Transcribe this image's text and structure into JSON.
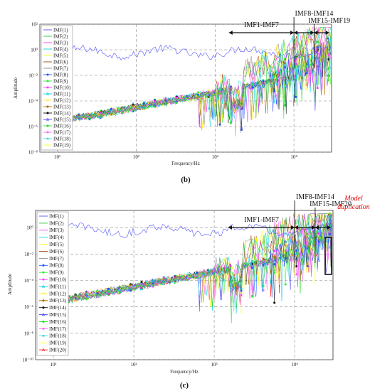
{
  "chart_data": [
    {
      "type": "line",
      "panel_caption": "(b)",
      "xlabel": "Frequency/Hz",
      "ylabel": "Amplitude",
      "xscale": "log",
      "yscale": "log",
      "xlim": [
        6,
        30000
      ],
      "ylim": [
        1e-08,
        100
      ],
      "x_tick_labels": [
        "10¹",
        "10²",
        "10³",
        "10⁴"
      ],
      "y_tick_labels": [
        "10⁻⁸",
        "10⁻⁶",
        "10⁻⁴",
        "10⁻²",
        "10⁰",
        "10²"
      ],
      "grid": true,
      "legend_placement": "left",
      "series": [
        {
          "name": "IMF(1)"
        },
        {
          "name": "IMF(2)"
        },
        {
          "name": "IMF(3)"
        },
        {
          "name": "IMF(4)"
        },
        {
          "name": "IMF(5)"
        },
        {
          "name": "IMF(6)"
        },
        {
          "name": "IMF(7)"
        },
        {
          "name": "IMF(8)"
        },
        {
          "name": "IMF(9)"
        },
        {
          "name": "IMF(10)"
        },
        {
          "name": "IMF(11)"
        },
        {
          "name": "IMF(12)"
        },
        {
          "name": "IMF(13)"
        },
        {
          "name": "IMF(14)"
        },
        {
          "name": "IMF(15)"
        },
        {
          "name": "IMF(16)"
        },
        {
          "name": "IMF(17)"
        },
        {
          "name": "IMF(18)"
        },
        {
          "name": "IMF(19)"
        }
      ],
      "annotations": [
        {
          "text": "IMF1-IMF7",
          "range_hz": [
            1500,
            10000
          ]
        },
        {
          "text": "IMF8-IMF14",
          "range_hz": [
            10000,
            18000
          ]
        },
        {
          "text": "IMF15-IMF19",
          "range_hz": [
            18000,
            28000
          ]
        }
      ]
    },
    {
      "type": "line",
      "panel_caption": "(c)",
      "xlabel": "Frequency/Hz",
      "ylabel": "Amplitude",
      "xscale": "log",
      "yscale": "log",
      "xlim": [
        6,
        30000
      ],
      "ylim": [
        1e-10,
        20
      ],
      "x_tick_labels": [
        "10¹",
        "10²",
        "10³",
        "10⁴"
      ],
      "y_tick_labels": [
        "10⁻¹⁰",
        "10⁻⁸",
        "10⁻⁶",
        "10⁻⁴",
        "10⁻²",
        "10⁰"
      ],
      "grid": true,
      "legend_placement": "left",
      "series": [
        {
          "name": "IMF(1)"
        },
        {
          "name": "IMF(2)"
        },
        {
          "name": "IMF(3)"
        },
        {
          "name": "IMF(4)"
        },
        {
          "name": "IMF(5)"
        },
        {
          "name": "IMF(6)"
        },
        {
          "name": "IMF(7)"
        },
        {
          "name": "IMF(8)"
        },
        {
          "name": "IMF(9)"
        },
        {
          "name": "IMF(10)"
        },
        {
          "name": "IMF(11)"
        },
        {
          "name": "IMF(12)"
        },
        {
          "name": "IMF(13)"
        },
        {
          "name": "IMF(14)"
        },
        {
          "name": "IMF(15)"
        },
        {
          "name": "IMF(16)"
        },
        {
          "name": "IMF(17)"
        },
        {
          "name": "IMF(18)"
        },
        {
          "name": "IMF(19)"
        },
        {
          "name": "IMF(20)"
        }
      ],
      "annotations": [
        {
          "text": "IMF1-IMF7",
          "range_hz": [
            1500,
            10000
          ]
        },
        {
          "text": "IMF8-IMF14",
          "range_hz": [
            10000,
            18000
          ]
        },
        {
          "text": "IMF15-IMF20",
          "range_hz": [
            18000,
            28000
          ]
        },
        {
          "text": "Model\nduplication",
          "color": "#e00000"
        }
      ]
    }
  ],
  "colors": {
    "series": [
      "#5555ff",
      "#22cc22",
      "#ff44ff",
      "#00dddd",
      "#ffff00",
      "#aa4400",
      "#888888",
      "#2255ff",
      "#33ee33",
      "#ff33ff",
      "#00ccee",
      "#ffee33",
      "#aa6600",
      "#111111",
      "#4444ff",
      "#22dd22",
      "#ff66ff",
      "#33dddd",
      "#ffff66",
      "#ff2222"
    ],
    "annotation": "#111111",
    "highlight": "#e00000"
  }
}
